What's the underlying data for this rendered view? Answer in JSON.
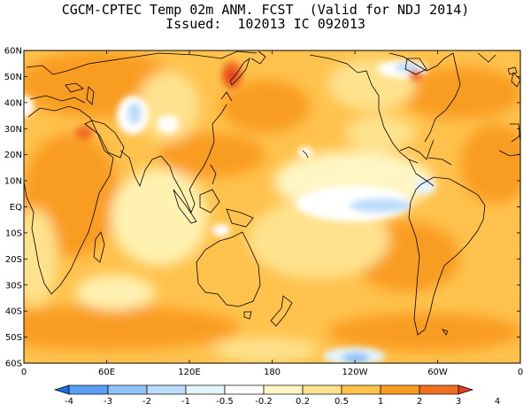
{
  "title": {
    "line1": "CGCM-CPTEC Temp 02m ANM. FCST  (Valid for NDJ 2014)",
    "line2": "Issued:  102013 IC 092013"
  },
  "map": {
    "lat_labels": [
      "60N",
      "50N",
      "40N",
      "30N",
      "20N",
      "10N",
      "EQ",
      "10S",
      "20S",
      "30S",
      "40S",
      "50S",
      "60S"
    ],
    "lon_labels": [
      "0",
      "60E",
      "120E",
      "180",
      "120W",
      "60W",
      "0"
    ]
  },
  "colorbar": {
    "bounds": [
      "-4",
      "-3",
      "-2",
      "-1",
      "-0.5",
      "-0.2",
      "0.2",
      "0.5",
      "1",
      "2",
      "3",
      "4"
    ],
    "colors": [
      "#1d6fe0",
      "#5a9ff2",
      "#8fc3f7",
      "#bbdcf9",
      "#e4f3fc",
      "#ffffff",
      "#fff6c4",
      "#ffe28d",
      "#ffc24d",
      "#f99d20",
      "#f07022",
      "#e63d1d"
    ]
  }
}
